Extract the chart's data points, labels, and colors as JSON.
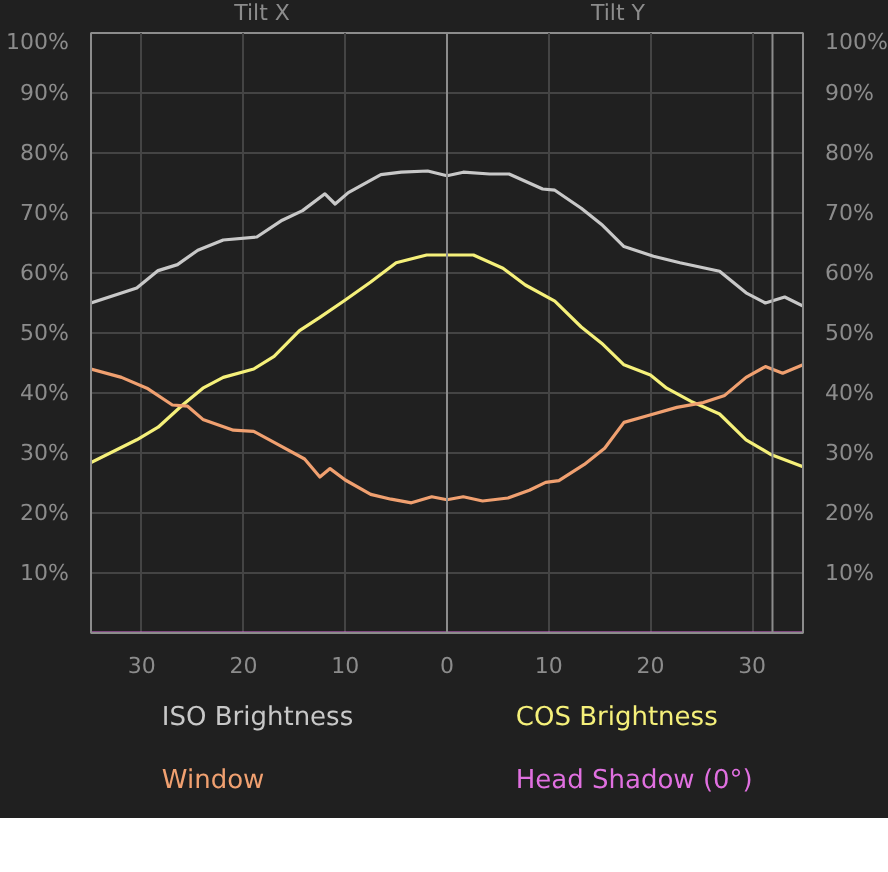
{
  "chart_data": {
    "type": "line",
    "annotations": [
      "Tilt X",
      "Tilt Y"
    ],
    "xlim": [
      -35,
      35
    ],
    "xticks": [
      {
        "value": -30,
        "label": "30"
      },
      {
        "value": -20,
        "label": "20"
      },
      {
        "value": -10,
        "label": "10"
      },
      0,
      10,
      20,
      30
    ],
    "ylim": [
      0,
      100
    ],
    "yticks": [
      {
        "value": 10,
        "label": "10%"
      },
      {
        "value": 20,
        "label": "20%"
      },
      {
        "value": 30,
        "label": "30%"
      },
      {
        "value": 40,
        "label": "40%"
      },
      {
        "value": 50,
        "label": "50%"
      },
      {
        "value": 60,
        "label": "60%"
      },
      {
        "value": 70,
        "label": "70%"
      },
      {
        "value": 80,
        "label": "80%"
      },
      {
        "value": 90,
        "label": "90%"
      },
      {
        "value": 100,
        "label": "100%"
      }
    ],
    "y2lim": [
      0,
      100
    ],
    "y2ticks": [
      {
        "value": 10,
        "label": "10%"
      },
      {
        "value": 20,
        "label": "20%"
      },
      {
        "value": 30,
        "label": "30%"
      },
      {
        "value": 40,
        "label": "40%"
      },
      {
        "value": 50,
        "label": "50%"
      },
      {
        "value": 60,
        "label": "60%"
      },
      {
        "value": 70,
        "label": "70%"
      },
      {
        "value": 80,
        "label": "80%"
      },
      {
        "value": 90,
        "label": "90%"
      },
      {
        "value": 100,
        "label": "100%"
      }
    ],
    "grid": true,
    "legend": "bottom",
    "marker": "none",
    "line_style": "solid",
    "ref_lines": [
      {
        "axis": "x",
        "value": 0,
        "color": "#8c8c8c"
      },
      {
        "axis": "x",
        "value": 32,
        "color": "#8c8c8c"
      }
    ],
    "series": [
      {
        "name": "ISO Brightness",
        "color": "#c8c8c8",
        "x": [
          -35,
          -30.5,
          -28.4,
          -26.5,
          -24.5,
          -22,
          -18.7,
          -16.2,
          -14.2,
          -12,
          -11,
          -9.7,
          -6.5,
          -4.5,
          -1.9,
          0,
          1.6,
          4.2,
          6.1,
          9.4,
          10.6,
          13.2,
          15.2,
          17.4,
          20.3,
          22.9,
          26.8,
          29.4,
          31.3,
          33.2,
          35
        ],
        "values": [
          55,
          57.5,
          60.4,
          61.4,
          63.8,
          65.5,
          66,
          68.8,
          70.4,
          73.2,
          71.5,
          73.4,
          76.4,
          76.8,
          77,
          76.2,
          76.8,
          76.5,
          76.5,
          74,
          73.8,
          70.8,
          68.1,
          64.4,
          62.8,
          61.7,
          60.3,
          56.7,
          55,
          56,
          54.5
        ]
      },
      {
        "name": "COS Brightness",
        "color": "#f5f07a",
        "x": [
          -35,
          -30.5,
          -28.4,
          -26,
          -24,
          -22,
          -19,
          -17,
          -14.5,
          -12.5,
          -10,
          -7.5,
          -5,
          -2,
          0,
          2.6,
          5.5,
          7.7,
          10.6,
          13.2,
          15.2,
          17.4,
          20,
          21.6,
          24,
          26.8,
          29.4,
          31.9,
          35
        ],
        "values": [
          28.4,
          32.2,
          34.3,
          38,
          40.8,
          42.6,
          44,
          46.1,
          50.4,
          52.6,
          55.5,
          58.5,
          61.7,
          63,
          63,
          63,
          60.8,
          58,
          55.3,
          51,
          48.3,
          44.7,
          43,
          40.8,
          38.6,
          36.5,
          32.2,
          29.7,
          27.7
        ]
      },
      {
        "name": "Window",
        "color": "#f0a070",
        "x": [
          -35,
          -32,
          -29.5,
          -27,
          -25.5,
          -24,
          -21,
          -19,
          -16.5,
          -14,
          -12.5,
          -11.5,
          -10,
          -7.5,
          -5.5,
          -3.5,
          -1.5,
          0,
          1.6,
          3.5,
          6,
          8.1,
          9.7,
          11,
          13.5,
          15.5,
          17.4,
          19.7,
          22.6,
          25.2,
          27.3,
          29.4,
          31.3,
          33,
          35
        ],
        "values": [
          44,
          42.6,
          40.8,
          38,
          37.8,
          35.6,
          33.8,
          33.6,
          31.3,
          29,
          26,
          27.4,
          25.5,
          23.1,
          22.3,
          21.7,
          22.7,
          22.2,
          22.7,
          22,
          22.5,
          23.8,
          25.1,
          25.4,
          28.1,
          30.8,
          35.1,
          36.2,
          37.6,
          38.4,
          39.6,
          42.6,
          44.4,
          43.3,
          44.7
        ]
      },
      {
        "name": "Head Shadow (0°)",
        "color": "#e070e0",
        "x": [
          -35,
          35
        ],
        "values": [
          0,
          0
        ]
      }
    ]
  }
}
